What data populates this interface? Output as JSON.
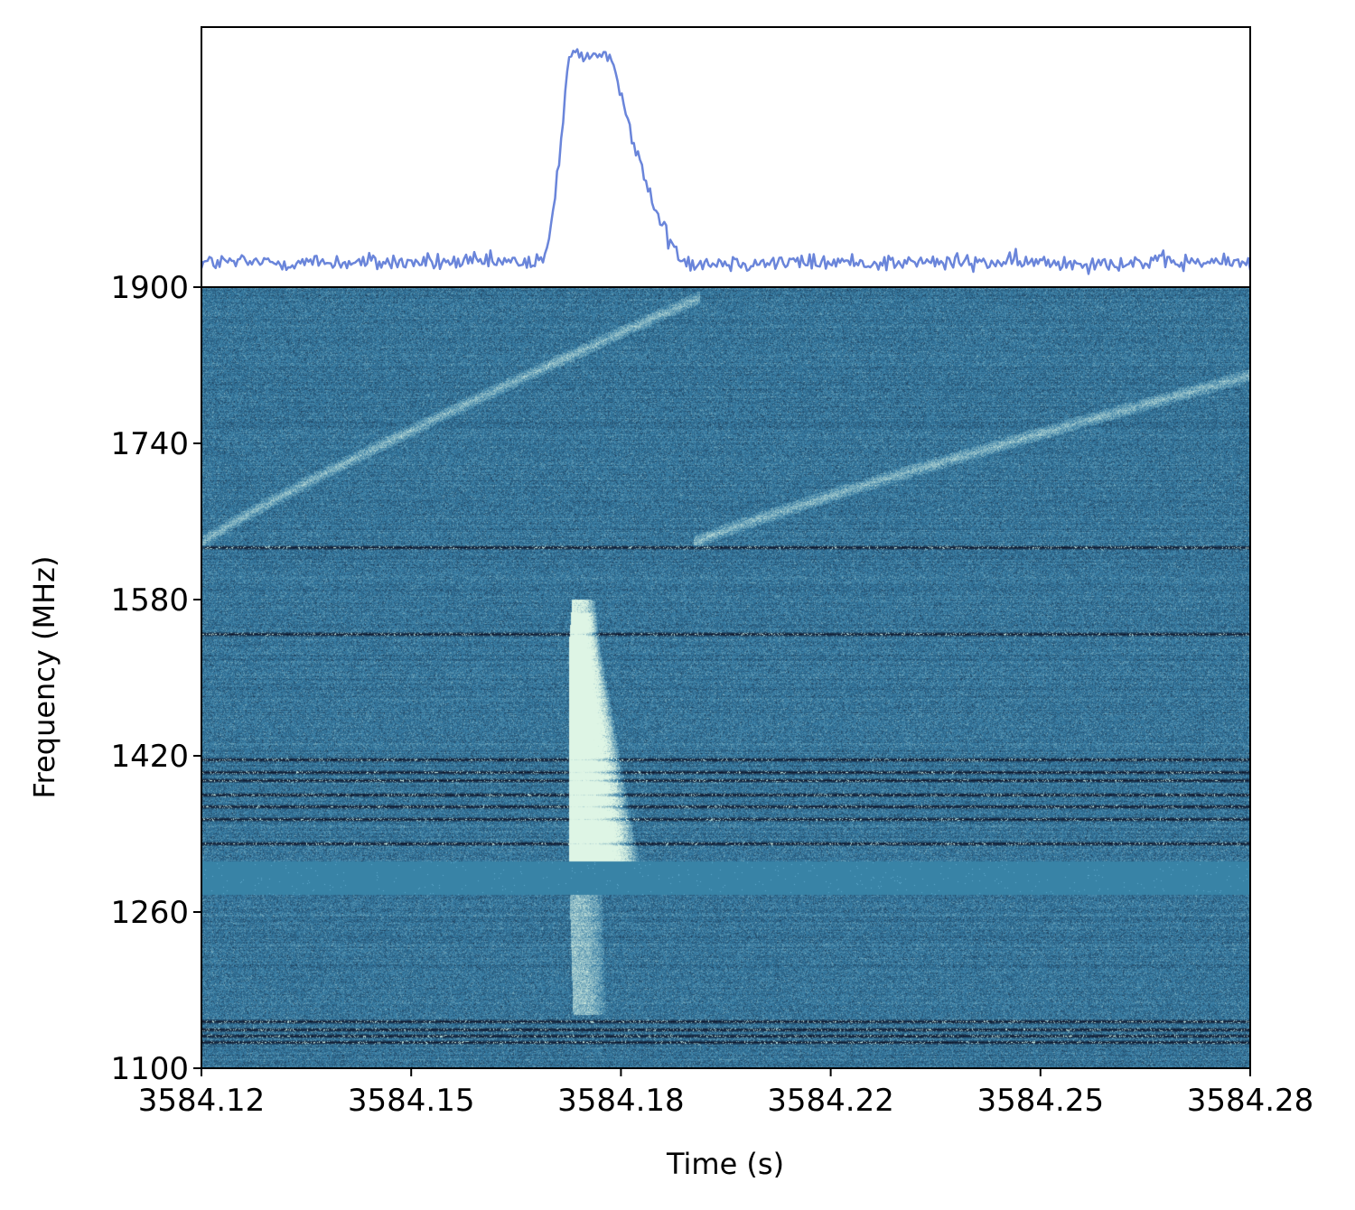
{
  "chart_data": [
    {
      "type": "line",
      "title": "",
      "xlabel": "",
      "ylabel": "",
      "xlim": [
        3584.12,
        3584.28
      ],
      "series": [
        {
          "color": "#6a85da",
          "baseline": 0.1,
          "peak": 0.95,
          "peak_time_range": [
            3584.176,
            3584.183
          ],
          "rise_start": 3584.172,
          "decay_end": 3584.195
        }
      ]
    },
    {
      "type": "heatmap",
      "title": "",
      "xlabel": "Time (s)",
      "ylabel": "Frequency (MHz)",
      "xlim": [
        3584.12,
        3584.28
      ],
      "ylim": [
        1100,
        1900
      ],
      "xticks": [
        "3584.12",
        "3584.15",
        "3584.18",
        "3584.22",
        "3584.25",
        "3584.28"
      ],
      "xtick_values": [
        3584.12,
        3584.152,
        3584.184,
        3584.216,
        3584.248,
        3584.28
      ],
      "yticks": [
        "1900",
        "1740",
        "1580",
        "1420",
        "1260",
        "1100"
      ],
      "ytick_values": [
        1900,
        1740,
        1580,
        1420,
        1260,
        1100
      ],
      "colormap": "mako",
      "colors": {
        "low": "#0b0a1c",
        "mid": "#357ba3",
        "high": "#def5e5",
        "masked_band": "#3883a6"
      },
      "features": {
        "burst_top_mhz": 1580,
        "burst_bottom_mhz": 1305,
        "faint_tail_bottom_mhz": 1155,
        "burst_start_time": 3584.176,
        "masked_band_mhz": [
          1278,
          1312
        ],
        "rfi_lines_mhz": [
          1634,
          1545,
          1416,
          1403,
          1395,
          1380,
          1368,
          1355,
          1330,
          1148,
          1140,
          1133,
          1127
        ],
        "diagonal_sweeps": [
          {
            "t0": 3584.12,
            "f0": 1638,
            "t1": 3584.196,
            "f1": 1890
          },
          {
            "t0": 3584.195,
            "f0": 1638,
            "t1": 3584.28,
            "f1": 1810
          }
        ]
      }
    }
  ]
}
